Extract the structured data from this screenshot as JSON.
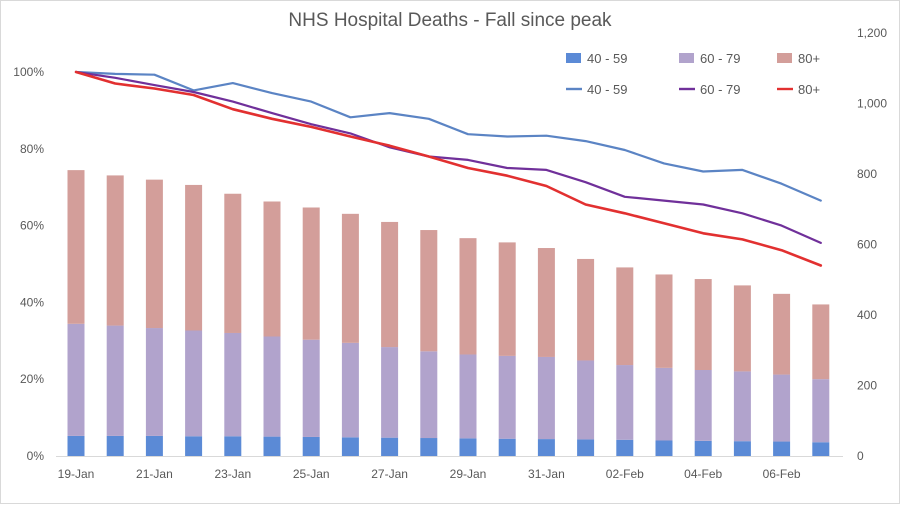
{
  "chart_data": {
    "type": "bar",
    "title": "NHS Hospital Deaths - Fall since peak",
    "categories": [
      "19-Jan",
      "20-Jan",
      "21-Jan",
      "22-Jan",
      "23-Jan",
      "24-Jan",
      "25-Jan",
      "26-Jan",
      "27-Jan",
      "28-Jan",
      "29-Jan",
      "30-Jan",
      "31-Jan",
      "01-Feb",
      "02-Feb",
      "03-Feb",
      "04-Feb",
      "05-Feb",
      "06-Feb",
      "07-Feb"
    ],
    "x_tick_labels": [
      "19-Jan",
      "21-Jan",
      "23-Jan",
      "25-Jan",
      "27-Jan",
      "29-Jan",
      "31-Jan",
      "02-Feb",
      "04-Feb",
      "06-Feb"
    ],
    "left_axis": {
      "ylim": [
        0,
        1.1
      ],
      "ticks": [
        "0%",
        "20%",
        "40%",
        "60%",
        "80%",
        "100%"
      ],
      "tick_values": [
        0,
        0.2,
        0.4,
        0.6,
        0.8,
        1.0
      ]
    },
    "right_axis": {
      "ylim": [
        0,
        1200
      ],
      "ticks": [
        "0",
        "200",
        "400",
        "600",
        "800",
        "1,000",
        "1,200"
      ],
      "tick_values": [
        0,
        200,
        400,
        600,
        800,
        1000,
        1200
      ]
    },
    "bar_series": [
      {
        "name": "40 - 59",
        "axis": "right",
        "color": "#5b8ad6",
        "values": [
          57,
          57,
          57,
          56,
          56,
          55,
          54,
          53,
          52,
          51,
          50,
          49,
          48,
          47,
          46,
          44,
          43,
          42,
          41,
          39
        ]
      },
      {
        "name": "60 - 79",
        "axis": "right",
        "color": "#b1a3cc",
        "values": [
          318,
          313,
          306,
          300,
          293,
          284,
          276,
          268,
          257,
          246,
          238,
          235,
          233,
          224,
          212,
          206,
          201,
          198,
          190,
          179
        ]
      },
      {
        "name": "80+",
        "axis": "right",
        "color": "#d39e9a",
        "values": [
          436,
          426,
          421,
          413,
          395,
          383,
          375,
          366,
          355,
          344,
          330,
          322,
          309,
          288,
          277,
          265,
          258,
          244,
          229,
          212
        ]
      }
    ],
    "line_series": [
      {
        "name": "40 - 59",
        "axis": "left",
        "color": "#5b84c4",
        "values": [
          1.0,
          0.995,
          0.993,
          0.952,
          0.971,
          0.945,
          0.923,
          0.882,
          0.893,
          0.878,
          0.838,
          0.832,
          0.834,
          0.82,
          0.797,
          0.762,
          0.741,
          0.745,
          0.709,
          0.665
        ]
      },
      {
        "name": "60 - 79",
        "axis": "left",
        "color": "#70309a",
        "values": [
          1.0,
          0.985,
          0.966,
          0.948,
          0.923,
          0.893,
          0.864,
          0.84,
          0.804,
          0.78,
          0.771,
          0.75,
          0.745,
          0.713,
          0.675,
          0.665,
          0.655,
          0.632,
          0.6,
          0.555
        ]
      },
      {
        "name": "80+",
        "axis": "left",
        "color": "#e23030",
        "values": [
          1.0,
          0.97,
          0.957,
          0.94,
          0.903,
          0.878,
          0.857,
          0.832,
          0.808,
          0.78,
          0.75,
          0.73,
          0.703,
          0.655,
          0.632,
          0.606,
          0.58,
          0.564,
          0.536,
          0.496
        ]
      }
    ],
    "legend_position": "top-right",
    "grid": false
  }
}
